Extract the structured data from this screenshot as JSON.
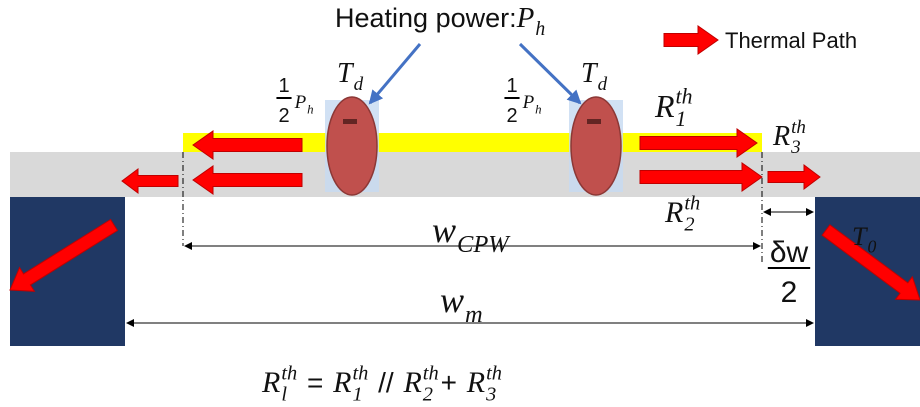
{
  "heating_label": {
    "text": "Heating power: ",
    "symbol": "P",
    "sub": "h"
  },
  "legend": {
    "label": "Thermal Path"
  },
  "half_power_labels": [
    {
      "numerator": "1",
      "denominator": "2",
      "symbol": "P",
      "sub": "h"
    },
    {
      "numerator": "1",
      "denominator": "2",
      "symbol": "P",
      "sub": "h"
    }
  ],
  "device_temps": [
    {
      "symbol": "T",
      "sub": "d"
    },
    {
      "symbol": "T",
      "sub": "d"
    }
  ],
  "resistances": [
    {
      "symbol": "R",
      "sub": "1",
      "sup": "th"
    },
    {
      "symbol": "R",
      "sub": "2",
      "sup": "th"
    },
    {
      "symbol": "R",
      "sub": "3",
      "sup": "th"
    }
  ],
  "widths": {
    "cpw": {
      "symbol": "w",
      "sub": "CPW"
    },
    "metal": {
      "symbol": "w",
      "sub": "m"
    },
    "gap": {
      "numerator": "δw",
      "denominator": "2"
    }
  },
  "ambient": {
    "symbol": "T",
    "sub": "0"
  },
  "formula": [
    {
      "symbol": "R",
      "sub": "l",
      "sup": "th"
    },
    {
      "text": " = "
    },
    {
      "symbol": "R",
      "sub": "1",
      "sup": "th"
    },
    {
      "text": " // "
    },
    {
      "symbol": "R",
      "sub": "2",
      "sup": "th"
    },
    {
      "text": "+ "
    },
    {
      "symbol": "R",
      "sub": "3",
      "sup": "th"
    }
  ]
}
